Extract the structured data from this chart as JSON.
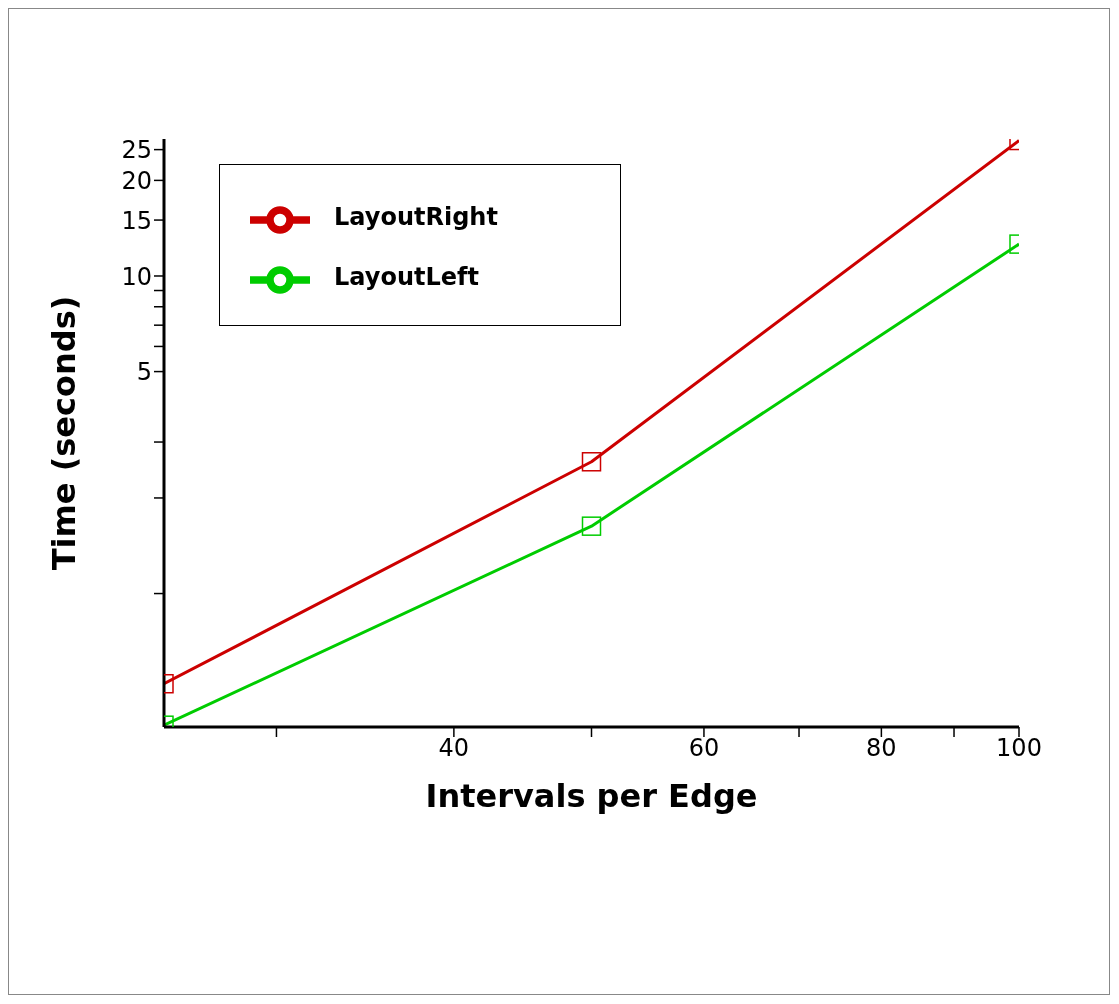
{
  "chart_data": {
    "type": "line",
    "xlabel": "Intervals per Edge",
    "ylabel": "Time (seconds)",
    "log": "xy",
    "xlim": [
      25,
      100
    ],
    "ylim": [
      0.38,
      27
    ],
    "xticks": [
      {
        "value": 30,
        "label": null
      },
      40,
      {
        "value": 50,
        "label": null
      },
      60,
      {
        "value": 70,
        "label": null
      },
      80,
      {
        "value": 90,
        "label": null
      },
      100
    ],
    "yticks": [
      {
        "value": 1,
        "label": null
      },
      {
        "value": 2,
        "label": null
      },
      {
        "value": 3,
        "label": null
      },
      5,
      {
        "value": 6,
        "label": null
      },
      {
        "value": 7,
        "label": null
      },
      {
        "value": 8,
        "label": null
      },
      {
        "value": 9,
        "label": null
      },
      10,
      15,
      20,
      25
    ],
    "x": [
      25,
      50,
      100
    ],
    "series": [
      {
        "name": "LayoutRight",
        "color": "#cc0000",
        "values": [
          0.52,
          2.6,
          26.7
        ]
      },
      {
        "name": "LayoutLeft",
        "color": "#00cc00",
        "values": [
          0.385,
          1.63,
          12.6
        ]
      }
    ],
    "marker": "square",
    "line_style": "solid",
    "legend": "top left",
    "grid": false
  }
}
